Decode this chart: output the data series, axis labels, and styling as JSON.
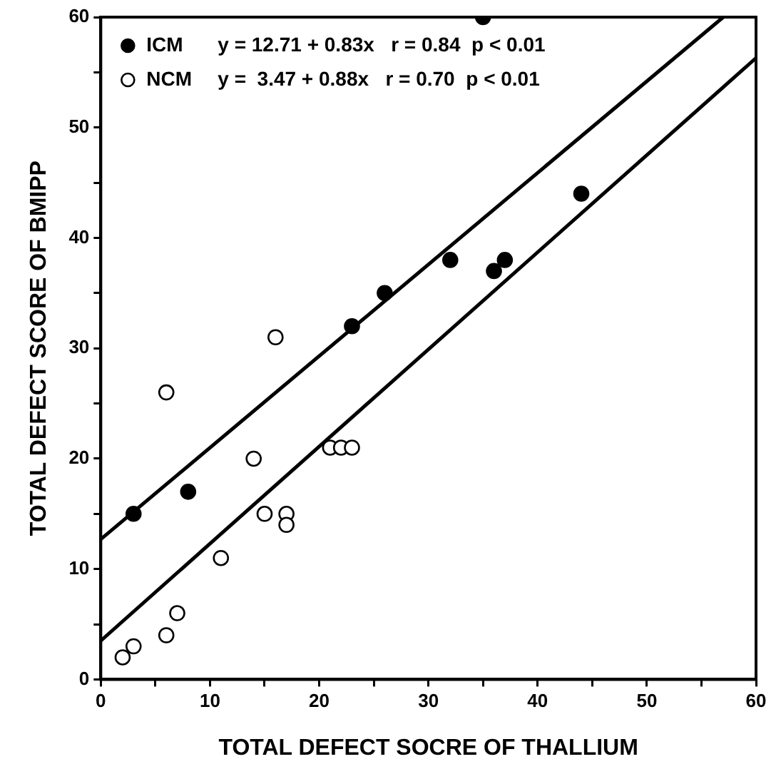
{
  "chart_data": {
    "type": "scatter",
    "xlabel": "TOTAL DEFECT SOCRE OF THALLIUM",
    "ylabel": "TOTAL DEFECT SCORE OF BMIPP",
    "xlim": [
      0,
      60
    ],
    "ylim": [
      0,
      60
    ],
    "xticks": [
      0,
      {
        "value": 5,
        "label": null
      },
      10,
      {
        "value": 15,
        "label": null
      },
      20,
      {
        "value": 25,
        "label": null
      },
      30,
      {
        "value": 35,
        "label": null
      },
      40,
      {
        "value": 45,
        "label": null
      },
      50,
      {
        "value": 55,
        "label": null
      },
      60
    ],
    "yticks": [
      0,
      {
        "value": 5,
        "label": null
      },
      10,
      {
        "value": 15,
        "label": null
      },
      20,
      {
        "value": 25,
        "label": null
      },
      30,
      {
        "value": 35,
        "label": null
      },
      40,
      {
        "value": 45,
        "label": null
      },
      50,
      {
        "value": 55,
        "label": null
      },
      60
    ],
    "marker": "circle",
    "legend": "top left",
    "annotations": [
      "y = 12.71 + 0.83x   r = 0.84  p < 0.01",
      "y =  3.47 + 0.88x   r = 0.70  p < 0.01"
    ],
    "series": [
      {
        "name": "ICM",
        "color": "#000000",
        "x": [
          3,
          8,
          23,
          26,
          32,
          36,
          37,
          44,
          35
        ],
        "values": [
          15,
          17,
          32,
          35,
          38,
          37,
          38,
          44,
          60
        ]
      },
      {
        "name": "NCM",
        "color": "#ffffff",
        "x": [
          2,
          3,
          6,
          7,
          6,
          11,
          14,
          15,
          17,
          17,
          16,
          21,
          22,
          23
        ],
        "values": [
          2,
          3,
          4,
          6,
          26,
          11,
          20,
          15,
          15,
          14,
          31,
          21,
          21,
          21
        ]
      },
      {
        "type": "line",
        "marker": "none",
        "color": "#000000",
        "x": [
          0,
          57
        ],
        "values": [
          12.7,
          60
        ]
      },
      {
        "type": "line",
        "marker": "none",
        "color": "#000000",
        "x": [
          0,
          60
        ],
        "values": [
          3.5,
          56.3
        ]
      }
    ]
  }
}
